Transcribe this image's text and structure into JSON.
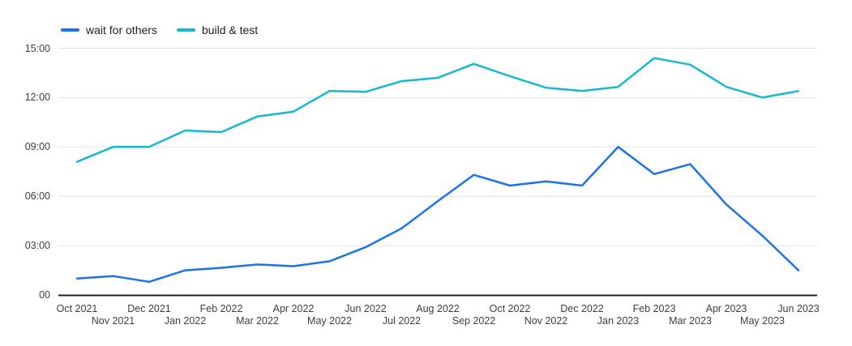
{
  "chart_data": {
    "type": "line",
    "title": "",
    "xlabel": "",
    "ylabel": "",
    "ylim": [
      0,
      15
    ],
    "grid": true,
    "legend_position": "top-left",
    "y_ticks": [
      {
        "label": "00",
        "hours": 0
      },
      {
        "label": "03:00",
        "hours": 3
      },
      {
        "label": "06:00",
        "hours": 6
      },
      {
        "label": "09:00",
        "hours": 9
      },
      {
        "label": "12:00",
        "hours": 12
      },
      {
        "label": "15:00",
        "hours": 15
      }
    ],
    "categories": [
      "Oct 2021",
      "Nov 2021",
      "Dec 2021",
      "Jan 2022",
      "Feb 2022",
      "Mar 2022",
      "Apr 2022",
      "May 2022",
      "Jun 2022",
      "Jul 2022",
      "Aug 2022",
      "Sep 2022",
      "Oct 2022",
      "Nov 2022",
      "Dec 2022",
      "Jan 2023",
      "Feb 2023",
      "Mar 2023",
      "Apr 2023",
      "May 2023",
      "Jun 2023"
    ],
    "series": [
      {
        "name": "wait for others",
        "color": "#1a73e8",
        "values": [
          1.0,
          1.15,
          0.8,
          1.5,
          1.65,
          1.85,
          1.75,
          2.05,
          2.9,
          4.05,
          5.7,
          7.3,
          6.65,
          6.9,
          6.65,
          9.0,
          7.35,
          7.95,
          5.5,
          3.6,
          1.5
        ]
      },
      {
        "name": "build & test",
        "color": "#14b8cf",
        "values": [
          8.1,
          9.0,
          9.0,
          10.0,
          9.9,
          10.85,
          11.15,
          12.4,
          12.35,
          13.0,
          13.2,
          14.05,
          13.3,
          12.6,
          12.4,
          12.65,
          14.4,
          14.0,
          12.65,
          12.0,
          12.4
        ]
      }
    ],
    "colors": {
      "grid": "#e3e3e3",
      "axis": "#202124",
      "tick_text": "#3c4043"
    }
  }
}
